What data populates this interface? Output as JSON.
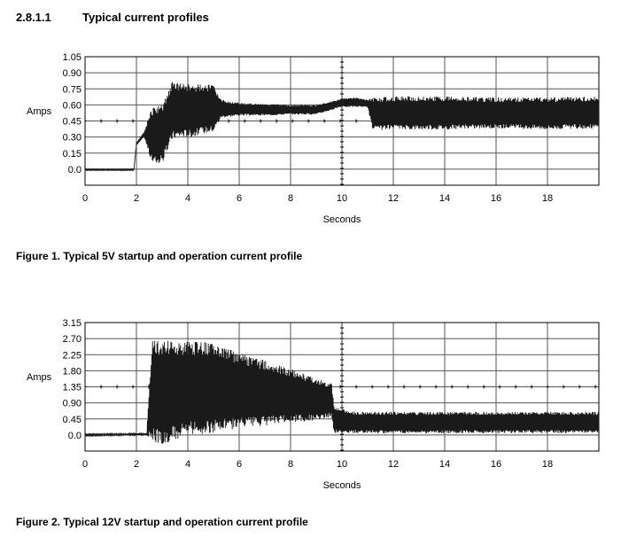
{
  "section": {
    "number": "2.8.1.1",
    "title": "Typical current profiles"
  },
  "colors": {
    "trace": "#1a1a1a",
    "grid": "#555555",
    "background": "#ffffff"
  },
  "figures": [
    {
      "caption": "Figure 1. Typical 5V startup and operation current profile"
    },
    {
      "caption": "Figure 2. Typical 12V startup and operation current profile"
    }
  ],
  "chart_data": [
    {
      "type": "area",
      "title": "",
      "xlabel": "Seconds",
      "ylabel": "Amps",
      "xlim": [
        0,
        20
      ],
      "ylim": [
        -0.15,
        1.05
      ],
      "x_ticks": [
        0,
        2,
        4,
        6,
        8,
        10,
        12,
        14,
        16,
        18
      ],
      "x_tick_labels": [
        "0",
        "2",
        "4",
        "6",
        "8",
        "10",
        "12",
        "14",
        "16",
        "18"
      ],
      "y_ticks": [
        1.05,
        0.9,
        0.75,
        0.6,
        0.45,
        0.3,
        0.15,
        0.0
      ],
      "y_tick_labels": [
        "1.05",
        "0.90",
        "0.75",
        "0.60",
        "0.45",
        "0.30",
        "0.15",
        "0.0"
      ],
      "grid": true,
      "reference_line": 0.45,
      "marker_x": 10,
      "series": [
        {
          "x": [
            0,
            1.9,
            2.0,
            2.3,
            2.6,
            3.0,
            3.4,
            3.8,
            4.2,
            4.6,
            5.0,
            5.3,
            6.0,
            7.0,
            8.0,
            9.0,
            10.0,
            10.5,
            11.0,
            11.2,
            12.0,
            14.0,
            16.0,
            18.0,
            20.0
          ],
          "high": [
            0.0,
            0.0,
            0.25,
            0.35,
            0.58,
            0.6,
            0.82,
            0.8,
            0.79,
            0.8,
            0.78,
            0.65,
            0.62,
            0.61,
            0.6,
            0.6,
            0.66,
            0.67,
            0.65,
            0.67,
            0.68,
            0.68,
            0.67,
            0.67,
            0.68
          ],
          "low": [
            -0.01,
            -0.01,
            0.22,
            0.3,
            0.05,
            0.05,
            0.28,
            0.3,
            0.3,
            0.33,
            0.35,
            0.48,
            0.5,
            0.5,
            0.51,
            0.51,
            0.58,
            0.58,
            0.58,
            0.36,
            0.37,
            0.37,
            0.38,
            0.37,
            0.38
          ]
        }
      ]
    },
    {
      "type": "area",
      "title": "",
      "xlabel": "Seconds",
      "ylabel": "Amps",
      "xlim": [
        0,
        20
      ],
      "ylim": [
        -0.45,
        3.15
      ],
      "x_ticks": [
        0,
        2,
        4,
        6,
        8,
        10,
        12,
        14,
        16,
        18
      ],
      "x_tick_labels": [
        "0",
        "2",
        "4",
        "6",
        "8",
        "10",
        "12",
        "14",
        "16",
        "18"
      ],
      "y_ticks": [
        3.15,
        2.7,
        2.25,
        1.8,
        1.35,
        0.9,
        0.45,
        0.0
      ],
      "y_tick_labels": [
        "3.15",
        "2.70",
        "2.25",
        "1.80",
        "1.35",
        "0.90",
        "0.45",
        "0.0"
      ],
      "grid": true,
      "reference_line": 1.35,
      "marker_x": 10,
      "series": [
        {
          "x": [
            0,
            2.4,
            2.6,
            3.0,
            4.0,
            5.0,
            6.0,
            7.0,
            8.0,
            9.0,
            9.6,
            9.7,
            10.5,
            12.0,
            14.0,
            16.0,
            18.0,
            20.0
          ],
          "high": [
            0.02,
            0.05,
            2.65,
            2.65,
            2.62,
            2.6,
            2.3,
            2.1,
            1.85,
            1.6,
            1.45,
            0.8,
            0.65,
            0.65,
            0.65,
            0.65,
            0.65,
            0.65
          ],
          "low": [
            -0.02,
            0.0,
            -0.15,
            -0.3,
            0.0,
            0.05,
            0.2,
            0.25,
            0.35,
            0.4,
            0.5,
            0.05,
            0.05,
            0.05,
            0.05,
            0.05,
            0.05,
            0.05
          ]
        }
      ]
    }
  ]
}
